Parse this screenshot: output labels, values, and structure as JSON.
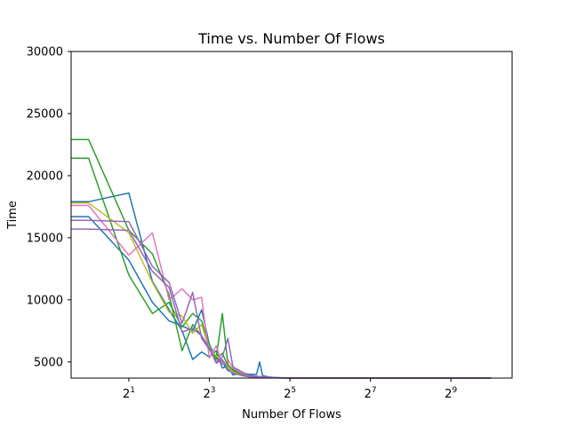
{
  "chart_data": {
    "type": "line",
    "title": "Time vs. Number Of Flows",
    "xlabel": "Number Of Flows",
    "ylabel": "Time",
    "xscale": "log2",
    "xlim": [
      0.74,
      1468
    ],
    "ylim": [
      3700,
      30000
    ],
    "grid": false,
    "legend": "none",
    "x_ticks": [
      {
        "value": 2,
        "base": "2",
        "exp": "1"
      },
      {
        "value": 8,
        "base": "2",
        "exp": "3"
      },
      {
        "value": 32,
        "base": "2",
        "exp": "5"
      },
      {
        "value": 128,
        "base": "2",
        "exp": "7"
      },
      {
        "value": 512,
        "base": "2",
        "exp": "9"
      }
    ],
    "y_ticks": [
      {
        "value": 5000,
        "label": "5000"
      },
      {
        "value": 10000,
        "label": "10000"
      },
      {
        "value": 15000,
        "label": "15000"
      },
      {
        "value": 20000,
        "label": "20000"
      },
      {
        "value": 25000,
        "label": "25000"
      },
      {
        "value": 30000,
        "label": "30000"
      }
    ],
    "series": [
      {
        "color": "#1f77b4",
        "points": [
          [
            0.74,
            17900
          ],
          [
            1,
            17900
          ],
          [
            2,
            18600
          ],
          [
            3,
            11500
          ],
          [
            4,
            9200
          ],
          [
            5,
            7500
          ],
          [
            6,
            5200
          ],
          [
            7,
            5800
          ],
          [
            8,
            5400
          ],
          [
            9,
            5900
          ],
          [
            10,
            4500
          ],
          [
            11,
            4700
          ],
          [
            12,
            3950
          ],
          [
            14,
            4100
          ],
          [
            16,
            4000
          ],
          [
            18,
            4000
          ],
          [
            19,
            5000
          ],
          [
            20,
            3900
          ],
          [
            22,
            3800
          ],
          [
            24,
            3750
          ],
          [
            28,
            3720
          ],
          [
            32,
            3720
          ],
          [
            48,
            3710
          ],
          [
            64,
            3710
          ],
          [
            128,
            3710
          ],
          [
            512,
            3710
          ],
          [
            1024,
            3705
          ]
        ]
      },
      {
        "color": "#1f77b4",
        "points": [
          [
            0.74,
            16700
          ],
          [
            1,
            16700
          ],
          [
            2,
            13200
          ],
          [
            3,
            9800
          ],
          [
            4,
            8300
          ],
          [
            5,
            7900
          ],
          [
            6,
            7500
          ],
          [
            7,
            9200
          ],
          [
            8,
            6400
          ],
          [
            9,
            5300
          ],
          [
            10,
            5000
          ],
          [
            11,
            4300
          ],
          [
            12,
            4200
          ],
          [
            14,
            3950
          ],
          [
            16,
            3800
          ],
          [
            20,
            3750
          ],
          [
            24,
            3720
          ],
          [
            32,
            3710
          ],
          [
            64,
            3710
          ],
          [
            256,
            3710
          ],
          [
            1024,
            3705
          ]
        ]
      },
      {
        "color": "#2ca02c",
        "points": [
          [
            0.74,
            22900
          ],
          [
            1,
            22900
          ],
          [
            2,
            15600
          ],
          [
            3,
            13700
          ],
          [
            4,
            10400
          ],
          [
            5,
            5900
          ],
          [
            6,
            8000
          ],
          [
            7,
            7100
          ],
          [
            8,
            6100
          ],
          [
            9,
            5300
          ],
          [
            10,
            8900
          ],
          [
            11,
            4800
          ],
          [
            12,
            4300
          ],
          [
            14,
            4000
          ],
          [
            16,
            3800
          ],
          [
            20,
            3760
          ],
          [
            24,
            3720
          ],
          [
            32,
            3710
          ],
          [
            64,
            3710
          ],
          [
            1024,
            3705
          ]
        ]
      },
      {
        "color": "#2ca02c",
        "points": [
          [
            0.74,
            21400
          ],
          [
            1,
            21400
          ],
          [
            2,
            12000
          ],
          [
            3,
            8900
          ],
          [
            4,
            9800
          ],
          [
            5,
            7800
          ],
          [
            6,
            8900
          ],
          [
            7,
            8300
          ],
          [
            8,
            6400
          ],
          [
            9,
            5200
          ],
          [
            10,
            5700
          ],
          [
            11,
            4700
          ],
          [
            12,
            4400
          ],
          [
            14,
            4000
          ],
          [
            16,
            3900
          ],
          [
            20,
            3780
          ],
          [
            24,
            3720
          ],
          [
            32,
            3710
          ],
          [
            64,
            3710
          ],
          [
            1024,
            3705
          ]
        ]
      },
      {
        "color": "#bcbd22",
        "points": [
          [
            0.74,
            17800
          ],
          [
            1,
            17800
          ],
          [
            2,
            15400
          ],
          [
            3,
            11400
          ],
          [
            4,
            9000
          ],
          [
            5,
            8700
          ],
          [
            6,
            7300
          ],
          [
            7,
            8000
          ],
          [
            8,
            6000
          ],
          [
            9,
            5500
          ],
          [
            10,
            5100
          ],
          [
            11,
            4600
          ],
          [
            12,
            4200
          ],
          [
            14,
            3900
          ],
          [
            16,
            3800
          ],
          [
            20,
            3750
          ],
          [
            24,
            3720
          ],
          [
            32,
            3710
          ],
          [
            1024,
            3705
          ]
        ]
      },
      {
        "color": "#e377c2",
        "points": [
          [
            0.74,
            17600
          ],
          [
            1,
            17600
          ],
          [
            2,
            13600
          ],
          [
            3,
            15400
          ],
          [
            4,
            10000
          ],
          [
            5,
            10900
          ],
          [
            6,
            10000
          ],
          [
            7,
            10200
          ],
          [
            8,
            5300
          ],
          [
            9,
            6300
          ],
          [
            10,
            4800
          ],
          [
            11,
            5200
          ],
          [
            12,
            4500
          ],
          [
            14,
            4100
          ],
          [
            16,
            3900
          ],
          [
            20,
            3800
          ],
          [
            24,
            3730
          ],
          [
            32,
            3710
          ],
          [
            1024,
            3705
          ]
        ]
      },
      {
        "color": "#9467bd",
        "points": [
          [
            0.74,
            16400
          ],
          [
            1,
            16400
          ],
          [
            2,
            16300
          ],
          [
            3,
            12700
          ],
          [
            4,
            11400
          ],
          [
            5,
            8100
          ],
          [
            6,
            10600
          ],
          [
            7,
            6900
          ],
          [
            8,
            6000
          ],
          [
            9,
            5000
          ],
          [
            10,
            5400
          ],
          [
            11,
            6900
          ],
          [
            12,
            4600
          ],
          [
            14,
            4200
          ],
          [
            16,
            3900
          ],
          [
            20,
            3800
          ],
          [
            24,
            3740
          ],
          [
            32,
            3710
          ],
          [
            1024,
            3705
          ]
        ]
      },
      {
        "color": "#9467bd",
        "points": [
          [
            0.74,
            15700
          ],
          [
            1,
            15700
          ],
          [
            2,
            15600
          ],
          [
            3,
            12300
          ],
          [
            4,
            11000
          ],
          [
            5,
            7400
          ],
          [
            6,
            7700
          ],
          [
            7,
            7100
          ],
          [
            8,
            6100
          ],
          [
            9,
            4900
          ],
          [
            10,
            5200
          ],
          [
            11,
            4400
          ],
          [
            12,
            4100
          ],
          [
            14,
            3900
          ],
          [
            16,
            3800
          ],
          [
            20,
            3750
          ],
          [
            24,
            3720
          ],
          [
            32,
            3710
          ],
          [
            1024,
            3705
          ]
        ]
      }
    ]
  }
}
